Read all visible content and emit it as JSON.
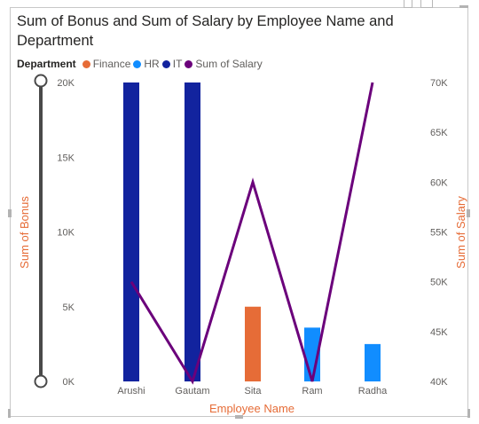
{
  "visual": {
    "title": "Sum of Bonus and Sum of Salary by Employee Name and Department"
  },
  "chart_data": {
    "type": "bar",
    "title": "Sum of Bonus and Sum of Salary by Employee Name and Department",
    "xlabel": "Employee Name",
    "ylabel": "Sum of Bonus",
    "y2label": "Sum of Salary",
    "categories": [
      "Arushi",
      "Gautam",
      "Sita",
      "Ram",
      "Radha"
    ],
    "ylim": [
      0,
      20000
    ],
    "y2lim": [
      40000,
      70000
    ],
    "yticks": [
      "0K",
      "5K",
      "10K",
      "15K",
      "20K"
    ],
    "y2ticks": [
      "40K",
      "45K",
      "50K",
      "55K",
      "60K",
      "65K",
      "70K"
    ],
    "legend_title": "Department",
    "legend_placement": "top-left",
    "grid": false,
    "series": [
      {
        "name": "Finance",
        "type": "bar",
        "color": "#e66c37",
        "values": [
          null,
          null,
          5000,
          null,
          null
        ]
      },
      {
        "name": "HR",
        "type": "bar",
        "color": "#118dff",
        "values": [
          null,
          null,
          null,
          3600,
          2500
        ]
      },
      {
        "name": "IT",
        "type": "bar",
        "color": "#12239e",
        "values": [
          20000,
          20000,
          null,
          null,
          null
        ]
      },
      {
        "name": "Sum of Salary",
        "type": "line",
        "axis": "secondary",
        "color": "#6b007b",
        "values": [
          50000,
          40000,
          60000,
          40000,
          70000
        ]
      }
    ]
  }
}
